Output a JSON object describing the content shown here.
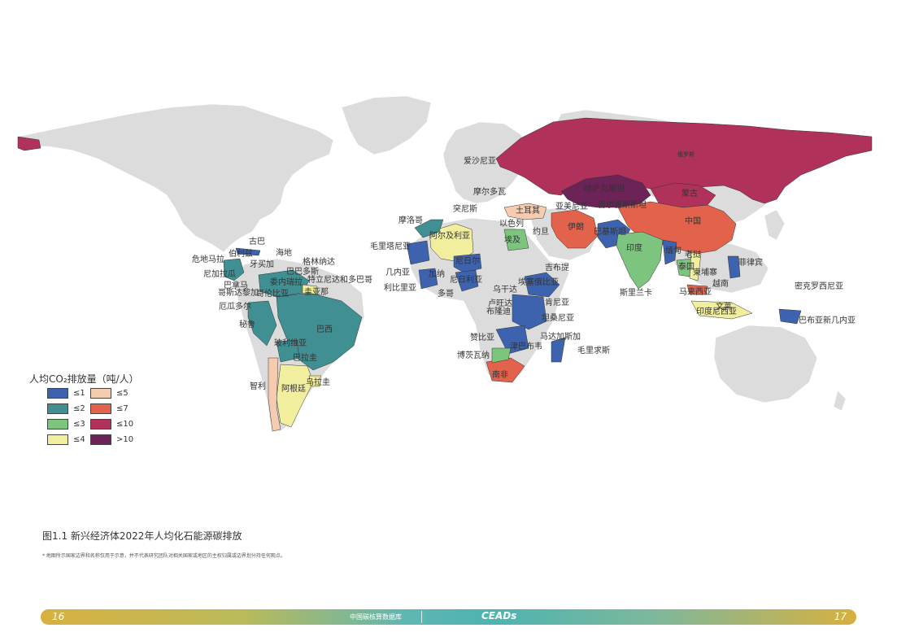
{
  "colors": {
    "land": "#dcdcdc",
    "le1": "#3d63ae",
    "le2": "#3f8f93",
    "le3": "#7dc47f",
    "le4": "#f1ef9d",
    "le5": "#f6ccb0",
    "le7": "#e2624c",
    "le10": "#b0325b",
    "gt10": "#6b2358",
    "footer_gradient": [
      "#d8b040",
      "#4db3b1",
      "#d8b040"
    ]
  },
  "legend": {
    "title": "人均CO₂排放量（吨/人）",
    "items": [
      {
        "label": "≤1",
        "color": "#3d63ae"
      },
      {
        "label": "≤2",
        "color": "#3f8f93"
      },
      {
        "label": "≤3",
        "color": "#7dc47f"
      },
      {
        "label": "≤4",
        "color": "#f1ef9d"
      },
      {
        "label": "≤5",
        "color": "#f6ccb0"
      },
      {
        "label": "≤7",
        "color": "#e2624c"
      },
      {
        "label": "≤10",
        "color": "#b0325b"
      },
      {
        "label": ">10",
        "color": "#6b2358"
      }
    ]
  },
  "labels": {
    "russia": "俄罗斯",
    "kazakhstan": "哈萨克斯坦",
    "mongolia": "蒙古",
    "china": "中国",
    "kyrgyzstan": "吉尔吉斯斯坦",
    "armenia": "亚美尼亚",
    "turkey": "土耳其",
    "israel": "以色列",
    "jordan": "约旦",
    "egypt": "埃及",
    "iran": "伊朗",
    "pakistan": "巴基斯坦",
    "india": "印度",
    "srilanka": "斯里兰卡",
    "myanmar": "缅甸",
    "thailand": "泰国",
    "laos": "老挝",
    "cambodia": "柬埔寨",
    "vietnam": "越南",
    "philippines": "菲律宾",
    "malaysia": "马来西亚",
    "brunei": "文莱",
    "indonesia": "印度尼西亚",
    "png": "巴布亚新几内亚",
    "micronesia": "密克罗西尼亚",
    "albania": "爱沙尼亚",
    "moldova": "摩尔多瓦",
    "tunisia": "突尼斯",
    "morocco": "摩洛哥",
    "algeria": "阿尔及利亚",
    "mauritania": "毛里塔尼亚",
    "niger": "尼日尔",
    "nigeria": "尼日利亚",
    "guinea": "几内亚",
    "liberia": "利比里亚",
    "ghana": "加纳",
    "togo": "多哥",
    "uganda": "乌干达",
    "ethiopia": "埃塞俄比亚",
    "djibouti": "吉布提",
    "kenya": "肯尼亚",
    "rwanda": "卢旺达",
    "burundi": "布隆迪",
    "tanzania": "坦桑尼亚",
    "zambia": "赞比亚",
    "zimbabwe": "津巴布韦",
    "madagascar": "马达加斯加",
    "mauritius": "毛里求斯",
    "botswana": "博茨瓦纳",
    "southafrica": "南非",
    "cuba": "古巴",
    "haiti": "海地",
    "jamaica": "牙买加",
    "belize": "伯利兹",
    "guatemala": "危地马拉",
    "nicaragua": "尼加拉瓜",
    "costarica": "哥斯达黎加",
    "panama": "巴拿马",
    "grenada": "格林纳达",
    "barbados": "巴巴多斯",
    "trinidad": "特立尼达和多巴哥",
    "venezuela": "委内瑞拉",
    "colombia": "哥伦比亚",
    "guyana": "圭亚那",
    "ecuador": "厄瓜多尔",
    "peru": "秘鲁",
    "brazil": "巴西",
    "bolivia": "玻利维亚",
    "paraguay": "巴拉圭",
    "uruguay": "乌拉圭",
    "chile": "智利",
    "argentina": "阿根廷"
  },
  "caption": "图1.1 新兴经济体2022年人均化石能源碳排放",
  "footnote": "* 地图所示国家边界和名称仅用于示意，并不代表研究团队对相关国家或地区的主权归属或边界划分持任何观点。",
  "footer": {
    "page_left": "16",
    "page_right": "17",
    "database": "中国碳核算数据库",
    "brand": "CEADs"
  }
}
